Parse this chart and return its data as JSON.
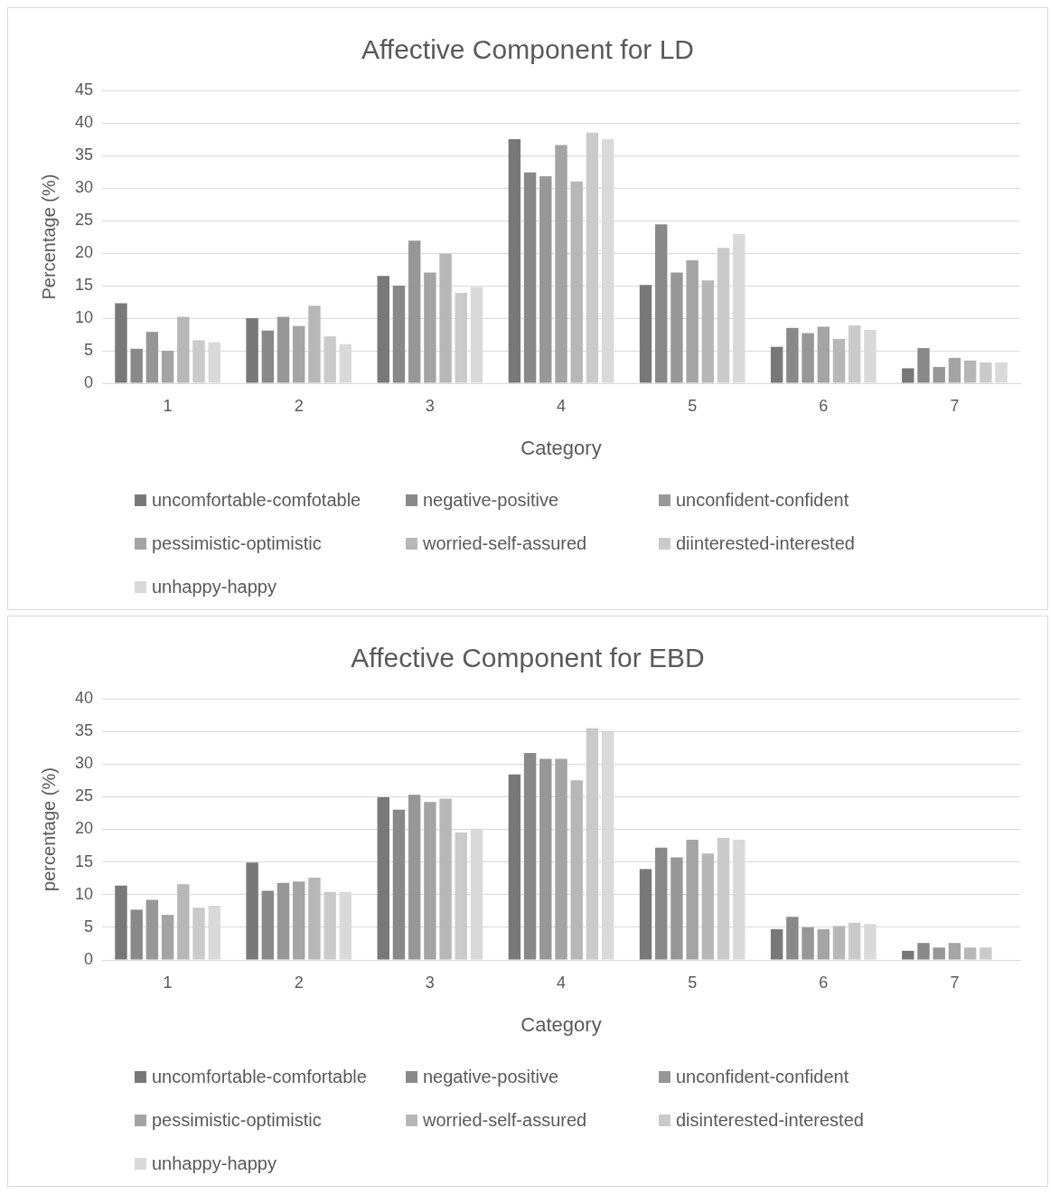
{
  "chart_data": [
    {
      "type": "bar",
      "title": "Affective Component for LD",
      "xlabel": "Category",
      "ylabel": "Percentage (%)",
      "categories": [
        "1",
        "2",
        "3",
        "4",
        "5",
        "6",
        "7"
      ],
      "ylim": [
        0,
        45
      ],
      "yticks": [
        0,
        5,
        10,
        15,
        20,
        25,
        30,
        35,
        40,
        45
      ],
      "grid": "y",
      "legend": "bottom",
      "series": [
        {
          "name": "uncomfortable-comfotable",
          "color": "#787878",
          "values": [
            12.3,
            10.0,
            16.5,
            37.5,
            15.1,
            5.6,
            2.3
          ]
        },
        {
          "name": "negative-positive",
          "color": "#898989",
          "values": [
            5.3,
            8.1,
            15.0,
            32.4,
            24.4,
            8.5,
            5.4
          ]
        },
        {
          "name": "unconfident-confident",
          "color": "#979797",
          "values": [
            7.9,
            10.2,
            21.9,
            31.8,
            17.0,
            7.7,
            2.5
          ]
        },
        {
          "name": "pessimistic-optimistic",
          "color": "#a4a4a4",
          "values": [
            5.0,
            8.8,
            17.0,
            36.6,
            18.9,
            8.7,
            3.9
          ]
        },
        {
          "name": "worried-self-assured",
          "color": "#b7b7b7",
          "values": [
            10.2,
            11.9,
            19.9,
            31.0,
            15.8,
            6.8,
            3.5
          ]
        },
        {
          "name": "diinterested-interested",
          "color": "#cacaca",
          "values": [
            6.6,
            7.2,
            13.9,
            38.5,
            20.8,
            8.9,
            3.2
          ]
        },
        {
          "name": "unhappy-happy",
          "color": "#d9d9d9",
          "values": [
            6.3,
            6.0,
            14.8,
            37.5,
            22.9,
            8.2,
            3.2
          ]
        }
      ]
    },
    {
      "type": "bar",
      "title": "Affective Component for EBD",
      "xlabel": "Category",
      "ylabel": "percentage (%)",
      "categories": [
        "1",
        "2",
        "3",
        "4",
        "5",
        "6",
        "7"
      ],
      "ylim": [
        0,
        40
      ],
      "yticks": [
        0,
        5,
        10,
        15,
        20,
        25,
        30,
        35,
        40
      ],
      "grid": "y",
      "legend": "bottom",
      "series": [
        {
          "name": "uncomfortable-comfortable",
          "color": "#787878",
          "values": [
            11.4,
            14.9,
            24.9,
            28.4,
            13.9,
            4.7,
            1.4
          ]
        },
        {
          "name": "negative-positive",
          "color": "#898989",
          "values": [
            7.7,
            10.6,
            23.0,
            31.7,
            17.2,
            6.6,
            2.6
          ]
        },
        {
          "name": "unconfident-confident",
          "color": "#979797",
          "values": [
            9.2,
            11.8,
            25.3,
            30.8,
            15.7,
            5.0,
            1.9
          ]
        },
        {
          "name": "pessimistic-optimistic",
          "color": "#a4a4a4",
          "values": [
            6.9,
            12.0,
            24.2,
            30.8,
            18.4,
            4.7,
            2.6
          ]
        },
        {
          "name": "worried-self-assured",
          "color": "#b7b7b7",
          "values": [
            11.6,
            12.6,
            24.7,
            27.5,
            16.3,
            5.2,
            1.9
          ]
        },
        {
          "name": "disinterested-interested",
          "color": "#cacaca",
          "values": [
            8.0,
            10.4,
            19.5,
            35.5,
            18.7,
            5.7,
            1.9
          ]
        },
        {
          "name": "unhappy-happy",
          "color": "#d9d9d9",
          "values": [
            8.3,
            10.4,
            20.1,
            35.1,
            18.4,
            5.5,
            null
          ]
        }
      ]
    }
  ]
}
